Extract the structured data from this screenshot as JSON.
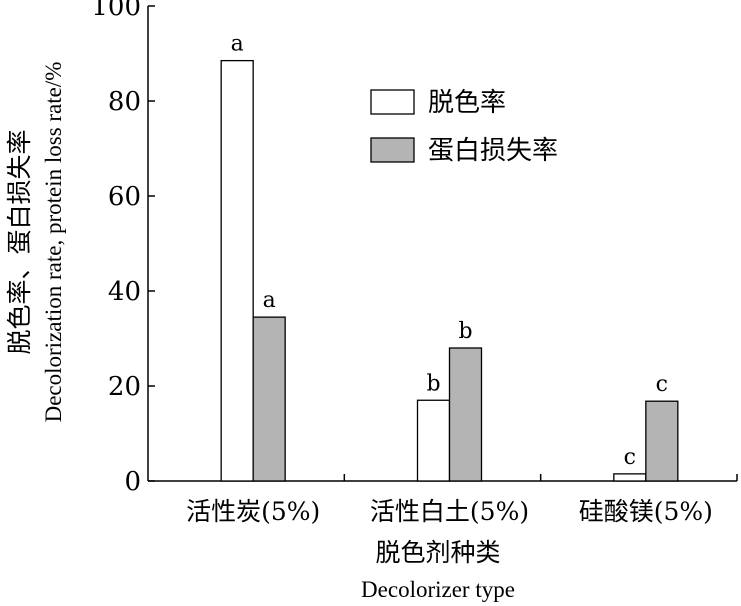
{
  "chart_data": {
    "type": "bar",
    "categories": [
      "活性炭(5%)",
      "活性白土(5%)",
      "硅酸镁(5%)"
    ],
    "series": [
      {
        "name": "脱色率",
        "values": [
          88.5,
          17,
          1.5
        ],
        "color": "#ffffff",
        "sig": [
          "a",
          "b",
          "c"
        ]
      },
      {
        "name": "蛋白损失率",
        "values": [
          34.5,
          28,
          16.8
        ],
        "color": "#b4b4b4",
        "sig": [
          "a",
          "b",
          "c"
        ]
      }
    ],
    "xlabel_cn": "脱色剂种类",
    "xlabel_en": "Decolorizer type",
    "ylabel_cn": "脱色率、蛋白损失率",
    "ylabel_en": "Decolorization rate, protein loss rate/%",
    "ylim": [
      0,
      100
    ],
    "yticks": [
      0,
      20,
      40,
      60,
      80,
      100
    ],
    "legend_position": "top-right",
    "grid": false
  }
}
